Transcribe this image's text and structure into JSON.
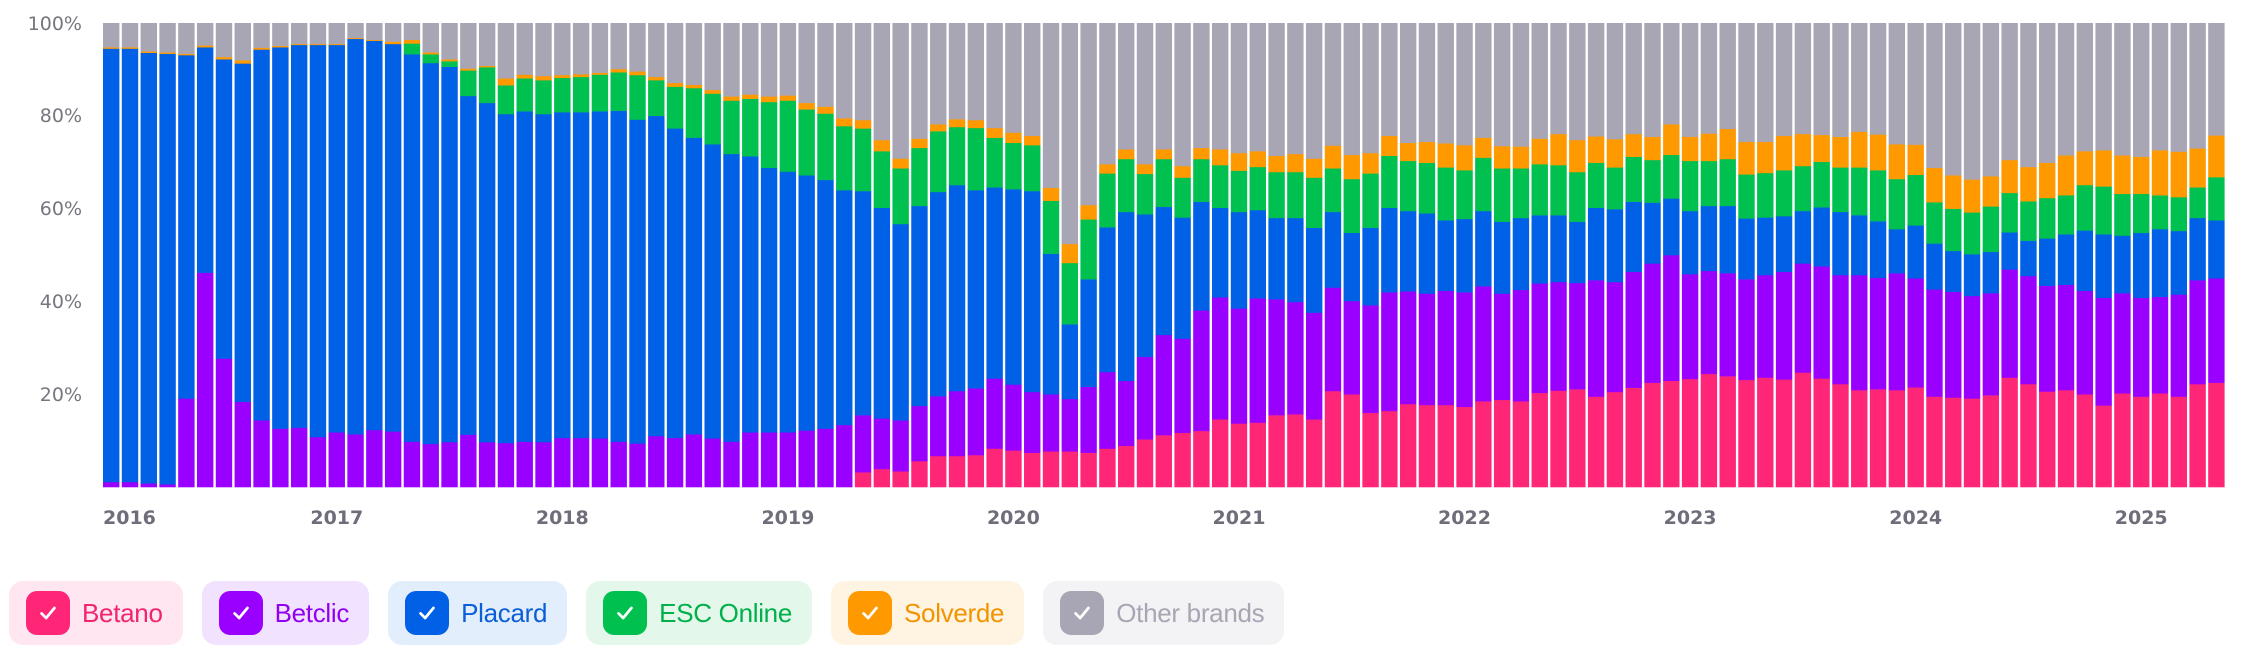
{
  "chart_data": {
    "type": "bar",
    "stacked": true,
    "percent": true,
    "title": "",
    "xlabel": "",
    "ylabel": "",
    "ylim": [
      0,
      100
    ],
    "yticks": [
      "20%",
      "40%",
      "60%",
      "80%",
      "100%"
    ],
    "xtick_labels": [
      "2016",
      "2017",
      "2018",
      "2019",
      "2020",
      "2021",
      "2022",
      "2023",
      "2024",
      "2025"
    ],
    "grid": false,
    "legend_position": "bottom-left",
    "categories": [
      "2016-01",
      "2016-02",
      "2016-03",
      "2016-04",
      "2016-05",
      "2016-06",
      "2016-07",
      "2016-08",
      "2016-09",
      "2016-10",
      "2016-11",
      "2016-12",
      "2017-01",
      "2017-02",
      "2017-03",
      "2017-04",
      "2017-05",
      "2017-06",
      "2017-07",
      "2017-08",
      "2017-09",
      "2017-10",
      "2017-11",
      "2017-12",
      "2018-01",
      "2018-02",
      "2018-03",
      "2018-04",
      "2018-05",
      "2018-06",
      "2018-07",
      "2018-08",
      "2018-09",
      "2018-10",
      "2018-11",
      "2018-12",
      "2019-01",
      "2019-02",
      "2019-03",
      "2019-04",
      "2019-05",
      "2019-06",
      "2019-07",
      "2019-08",
      "2019-09",
      "2019-10",
      "2019-11",
      "2019-12",
      "2020-01",
      "2020-02",
      "2020-03",
      "2020-04",
      "2020-05",
      "2020-06",
      "2020-07",
      "2020-08",
      "2020-09",
      "2020-10",
      "2020-11",
      "2020-12",
      "2021-01",
      "2021-02",
      "2021-03",
      "2021-04",
      "2021-05",
      "2021-06",
      "2021-07",
      "2021-08",
      "2021-09",
      "2021-10",
      "2021-11",
      "2021-12",
      "2022-01",
      "2022-02",
      "2022-03",
      "2022-04",
      "2022-05",
      "2022-06",
      "2022-07",
      "2022-08",
      "2022-09",
      "2022-10",
      "2022-11",
      "2022-12",
      "2023-01",
      "2023-02",
      "2023-03",
      "2023-04",
      "2023-05",
      "2023-06",
      "2023-07",
      "2023-08",
      "2023-09",
      "2023-10",
      "2023-11",
      "2023-12",
      "2024-01",
      "2024-02",
      "2024-03",
      "2024-04",
      "2024-05",
      "2024-06",
      "2024-07",
      "2024-08",
      "2024-09",
      "2024-10",
      "2024-11",
      "2024-12",
      "2025-01",
      "2025-02",
      "2025-03",
      "2025-04",
      "2025-05"
    ],
    "series": [
      {
        "name": "Betano",
        "color": "#ff2577",
        "values": [
          0,
          0,
          0,
          0,
          0,
          0,
          0,
          0,
          0,
          0,
          0,
          0,
          0,
          0,
          0,
          0,
          0,
          0,
          0,
          0,
          0,
          0,
          0,
          0,
          0,
          0,
          0,
          0,
          0,
          0,
          0,
          0,
          0,
          0,
          0,
          0,
          0,
          0,
          0,
          0,
          3.2,
          3.9,
          3.4,
          5.6,
          6.7,
          6.7,
          6.9,
          8.3,
          7.9,
          7.4,
          7.7,
          7.7,
          7.4,
          8.3,
          8.9,
          10.3,
          11.2,
          11.7,
          12.1,
          14.6,
          13.7,
          13.9,
          15.5,
          15.7,
          14.6,
          20.7,
          20,
          16,
          16.4,
          17.9,
          17.7,
          17.7,
          17.3,
          18.5,
          18.8,
          18.5,
          20.3,
          20.8,
          21.1,
          19.5,
          20.5,
          21.4,
          22.5,
          22.9,
          23.3,
          24.4,
          23.9,
          23.1,
          23.6,
          23.2,
          24.7,
          23.4,
          22.2,
          20.9,
          21.1,
          20.9,
          21.5,
          19.5,
          19.3,
          19.1,
          19.8,
          23.6,
          22.2,
          20.6,
          20.9,
          20,
          17.6,
          20.2,
          19.5,
          20.2,
          19.5,
          22.2,
          22.5
        ]
      },
      {
        "name": "Betclic",
        "color": "#9900ff",
        "values": [
          1.1,
          1.1,
          0.8,
          0.6,
          19.1,
          46.2,
          27.7,
          18.4,
          14.4,
          12.6,
          12.8,
          10.8,
          11.8,
          11.4,
          12.3,
          12,
          9.8,
          9.3,
          9.7,
          11.3,
          9.7,
          9.5,
          9.8,
          9.7,
          10.6,
          10.6,
          10.5,
          9.8,
          9.4,
          11,
          10.6,
          11.4,
          10.5,
          9.8,
          11.8,
          11.8,
          11.8,
          12.2,
          12.6,
          13.4,
          12.3,
          10.9,
          11,
          11.9,
          12.9,
          14,
          14.4,
          15.1,
          14.2,
          13.1,
          12.3,
          11.3,
          14.2,
          16.5,
          14,
          17.8,
          21.6,
          20.3,
          26,
          26.3,
          24.8,
          26.8,
          25,
          24.2,
          23,
          22.3,
          20.1,
          23.2,
          25.6,
          24.3,
          24,
          24.6,
          24.7,
          24.8,
          22.9,
          24,
          23.6,
          23.4,
          22.9,
          25.1,
          23.7,
          25,
          25.7,
          27.1,
          22.6,
          22.2,
          22.2,
          21.7,
          22.1,
          23.2,
          23.5,
          24.2,
          23.5,
          24.8,
          24,
          25.2,
          23.5,
          23.1,
          22.8,
          22.1,
          22,
          23.3,
          23.3,
          22.8,
          22.7,
          22.3,
          23.2,
          21.6,
          21.3,
          20.8,
          22,
          22.4,
          22.5
        ]
      },
      {
        "name": "Placard",
        "color": "#0060e6",
        "values": [
          93.4,
          93.4,
          92.8,
          92.8,
          74,
          48.6,
          64.5,
          72.9,
          79.9,
          82.2,
          82.5,
          84.5,
          83.5,
          85.2,
          83.9,
          83.5,
          83.5,
          82.1,
          80.9,
          73,
          73.1,
          70.9,
          71.2,
          70.7,
          70.2,
          70.2,
          70.5,
          71.3,
          69.8,
          69,
          66.7,
          63.9,
          63.4,
          62,
          59.5,
          57,
          56.2,
          55,
          53.6,
          50.6,
          48.3,
          45.4,
          42.3,
          43.1,
          44,
          44.4,
          42.7,
          41.2,
          42.1,
          43.3,
          30.3,
          16.1,
          23.2,
          31.2,
          36.4,
          30.7,
          27.6,
          26.1,
          23.4,
          19.3,
          20.8,
          19,
          17.5,
          18.1,
          18.3,
          16.3,
          14.7,
          16.7,
          18.2,
          17.3,
          17.3,
          15.2,
          15.8,
          16.2,
          15.5,
          15.5,
          14.7,
          14.4,
          13.2,
          15.6,
          15.7,
          15.1,
          13.1,
          12.2,
          13.6,
          14,
          14.5,
          13.1,
          12.4,
          12,
          11.3,
          12.7,
          13.6,
          12.9,
          12.2,
          9.5,
          11.4,
          9.9,
          8.8,
          9,
          8.9,
          8,
          7.6,
          10.2,
          10.9,
          13,
          13.7,
          12.4,
          14,
          14.6,
          13.7,
          13.4,
          12.5
        ]
      },
      {
        "name": "ESC Online",
        "color": "#00c050",
        "values": [
          0,
          0,
          0,
          0,
          0,
          0,
          0,
          0,
          0,
          0,
          0,
          0,
          0,
          0,
          0,
          0,
          2.3,
          1.9,
          1.2,
          5.5,
          7.7,
          6.2,
          7.1,
          7.3,
          7.4,
          7.6,
          7.9,
          8.3,
          9.6,
          7.7,
          9,
          10.7,
          10.9,
          11.5,
          12.4,
          14.2,
          15.3,
          14.2,
          14.3,
          13.8,
          13.5,
          12.2,
          12,
          12.5,
          13.1,
          12.5,
          13.4,
          10.7,
          10,
          9.9,
          11.4,
          13.2,
          12.9,
          11.6,
          11.4,
          8.7,
          10.3,
          8.6,
          9.2,
          9.2,
          8.9,
          9.3,
          9.9,
          9.9,
          10.8,
          9.4,
          11.6,
          11.7,
          11.2,
          10.8,
          10.9,
          11.4,
          10.5,
          11.5,
          11.5,
          10.7,
          11,
          10.8,
          10.7,
          9.7,
          9,
          9.7,
          9.2,
          9.4,
          10.8,
          9.7,
          10.1,
          9.5,
          9.6,
          9.9,
          9.7,
          9.8,
          9.6,
          10.3,
          11,
          10.8,
          10.9,
          8.9,
          9.1,
          9,
          9.8,
          8.5,
          8.5,
          8.7,
          8.4,
          9.8,
          10.3,
          9,
          8.4,
          7.3,
          7.3,
          6.6,
          9.3
        ]
      },
      {
        "name": "Solverde",
        "color": "#ff9900",
        "values": [
          0.3,
          0.3,
          0.3,
          0.3,
          0.3,
          0.4,
          0.5,
          0.7,
          0.4,
          0.3,
          0.2,
          0.2,
          0.2,
          0.2,
          0.2,
          0.5,
          0.8,
          0.4,
          0.4,
          0.4,
          0.3,
          1.5,
          0.8,
          0.9,
          0.6,
          0.6,
          0.4,
          0.7,
          0.8,
          0.7,
          0.8,
          0.7,
          0.8,
          0.9,
          0.9,
          1.2,
          1.1,
          1.4,
          1.5,
          1.7,
          1.8,
          2.4,
          2.1,
          2,
          1.5,
          1.7,
          1.7,
          2.1,
          2.2,
          2,
          2.8,
          4.1,
          3.1,
          2,
          2.1,
          2.1,
          2.1,
          2.5,
          2.4,
          3.4,
          3.8,
          3.4,
          3.5,
          3.9,
          4.1,
          4.9,
          5.2,
          4.4,
          4.3,
          3.9,
          4.5,
          5.2,
          5.4,
          4.3,
          4.8,
          4.7,
          5.5,
          6.7,
          6.9,
          5.7,
          6.1,
          4.9,
          5,
          6.6,
          5.2,
          5.9,
          6.5,
          7,
          6.7,
          7.4,
          6.9,
          5.8,
          6.6,
          7.7,
          7.7,
          7.5,
          6.5,
          7.4,
          7.2,
          7.1,
          6.5,
          7.1,
          7.4,
          7.6,
          8.6,
          7.3,
          7.8,
          8.3,
          8,
          9.7,
          9.8,
          8.4,
          9
        ]
      },
      {
        "name": "Other brands",
        "color": "#a8a6b4",
        "values": [
          5.2,
          5.2,
          6.1,
          6.3,
          6.6,
          4.8,
          7.3,
          8,
          5.3,
          4.9,
          4.5,
          4.5,
          4.5,
          3.2,
          3.6,
          4,
          3.6,
          6.3,
          7.8,
          9.8,
          9.2,
          11.9,
          11.1,
          11.4,
          11.2,
          11,
          10.7,
          9.9,
          10.4,
          11.6,
          12.9,
          13.3,
          14.4,
          15.8,
          15.4,
          15.8,
          15.6,
          17.2,
          18,
          20.5,
          20.9,
          25.2,
          29.2,
          24.9,
          21.8,
          20.7,
          20.9,
          22.6,
          23.6,
          24.3,
          35.5,
          47.6,
          39.2,
          30.4,
          27.2,
          30.4,
          27.2,
          30.8,
          26.9,
          27.2,
          28,
          27.6,
          28.6,
          28.2,
          29.2,
          26.4,
          28.4,
          28,
          24.3,
          25.8,
          25.6,
          25.9,
          26.3,
          24.7,
          26.5,
          26.6,
          24.9,
          23.9,
          25.2,
          24.4,
          25,
          23.9,
          24.5,
          21.8,
          24.5,
          23.8,
          22.8,
          25.6,
          25.6,
          24.3,
          23.9,
          24.1,
          24.5,
          23.4,
          24,
          26.1,
          26.2,
          31.2,
          32.8,
          33.7,
          33,
          29.5,
          31,
          30.1,
          28.5,
          27.6,
          27.4,
          28.5,
          28.8,
          27.4,
          27.7,
          27,
          24.2
        ]
      }
    ]
  },
  "legend": {
    "items": [
      {
        "label": "Betano",
        "checked": true,
        "color": "#ff2577",
        "tint": "#ffe6f0",
        "text_color": "#f0246f"
      },
      {
        "label": "Betclic",
        "checked": true,
        "color": "#9900ff",
        "tint": "#f1e3ff",
        "text_color": "#9200f2"
      },
      {
        "label": "Placard",
        "checked": true,
        "color": "#0060e6",
        "tint": "#e3eefc",
        "text_color": "#0a5ed8"
      },
      {
        "label": "ESC Online",
        "checked": true,
        "color": "#00c050",
        "tint": "#e3f8ea",
        "text_color": "#00b04a"
      },
      {
        "label": "Solverde",
        "checked": true,
        "color": "#ff9900",
        "tint": "#fff3e2",
        "text_color": "#f29400"
      },
      {
        "label": "Other brands",
        "checked": true,
        "color": "#a8a6b4",
        "tint": "#f3f3f5",
        "text_color": "#a8a6b4"
      }
    ]
  }
}
